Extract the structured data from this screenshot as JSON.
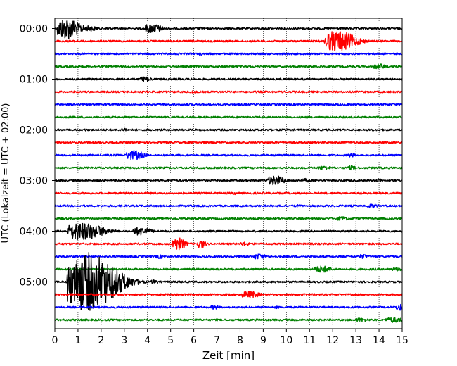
{
  "chart_data": {
    "type": "line",
    "subtype": "helicorder",
    "xlabel": "Zeit  [min]",
    "ylabel": "UTC (Lokalzeit = UTC + 02:00)",
    "xlim": [
      0,
      15
    ],
    "x_ticks": [
      "0",
      "1",
      "2",
      "3",
      "4",
      "5",
      "6",
      "7",
      "8",
      "9",
      "10",
      "11",
      "12",
      "13",
      "14",
      "15"
    ],
    "y_ticks": [
      "00:00",
      "01:00",
      "02:00",
      "03:00",
      "04:00",
      "05:00"
    ],
    "grid": {
      "x": "dotted vertical at each minute",
      "y": "none"
    },
    "legend": "none",
    "line_minutes": 15,
    "trace_colors": [
      "#000000",
      "#ff0000",
      "#0000ff",
      "#008000"
    ],
    "traces": [
      {
        "start": "00:00",
        "color": "#000000",
        "events": [
          {
            "t": 0.5,
            "amp": 16,
            "dur": 1.0
          },
          {
            "t": 1.5,
            "amp": 4,
            "dur": 0.6
          },
          {
            "t": 2.3,
            "amp": 2,
            "dur": 0.4
          },
          {
            "t": 4.2,
            "amp": 7,
            "dur": 0.8
          },
          {
            "t": 6.3,
            "amp": 2,
            "dur": 0.3
          }
        ]
      },
      {
        "start": "00:15",
        "color": "#ff0000",
        "events": [
          {
            "t": 12.2,
            "amp": 15,
            "dur": 1.4
          }
        ]
      },
      {
        "start": "00:30",
        "color": "#0000ff",
        "events": [
          {
            "t": 6.3,
            "amp": 2,
            "dur": 0.3
          },
          {
            "t": 10,
            "amp": 2,
            "dur": 0.3
          }
        ]
      },
      {
        "start": "00:45",
        "color": "#008000",
        "events": [
          {
            "t": 14.0,
            "amp": 4,
            "dur": 0.6
          }
        ]
      },
      {
        "start": "01:00",
        "color": "#000000",
        "events": [
          {
            "t": 3.9,
            "amp": 4,
            "dur": 0.5
          }
        ]
      },
      {
        "start": "01:15",
        "color": "#ff0000",
        "events": [
          {
            "t": 6.0,
            "amp": 2,
            "dur": 0.3
          }
        ]
      },
      {
        "start": "01:30",
        "color": "#0000ff",
        "events": []
      },
      {
        "start": "01:45",
        "color": "#008000",
        "events": []
      },
      {
        "start": "02:00",
        "color": "#000000",
        "events": [
          {
            "t": 1.3,
            "amp": 2,
            "dur": 0.3
          },
          {
            "t": 3.0,
            "amp": 3,
            "dur": 0.3
          }
        ]
      },
      {
        "start": "02:15",
        "color": "#ff0000",
        "events": [
          {
            "t": 4.0,
            "amp": 2,
            "dur": 0.3
          }
        ]
      },
      {
        "start": "02:30",
        "color": "#0000ff",
        "events": [
          {
            "t": 3.4,
            "amp": 7,
            "dur": 0.8
          },
          {
            "t": 12.8,
            "amp": 3,
            "dur": 0.4
          }
        ]
      },
      {
        "start": "02:45",
        "color": "#008000",
        "events": [
          {
            "t": 11.6,
            "amp": 3,
            "dur": 0.6
          },
          {
            "t": 12.8,
            "amp": 3,
            "dur": 0.4
          }
        ]
      },
      {
        "start": "03:00",
        "color": "#000000",
        "events": [
          {
            "t": 9.5,
            "amp": 7,
            "dur": 0.8
          },
          {
            "t": 10.8,
            "amp": 3,
            "dur": 0.4
          },
          {
            "t": 14.0,
            "amp": 3,
            "dur": 0.3
          }
        ]
      },
      {
        "start": "03:15",
        "color": "#ff0000",
        "events": [
          {
            "t": 7.8,
            "amp": 2,
            "dur": 0.4
          }
        ]
      },
      {
        "start": "03:30",
        "color": "#0000ff",
        "events": [
          {
            "t": 10.5,
            "amp": 2,
            "dur": 0.4
          },
          {
            "t": 13.7,
            "amp": 3,
            "dur": 0.6
          }
        ]
      },
      {
        "start": "03:45",
        "color": "#008000",
        "events": [
          {
            "t": 12.4,
            "amp": 3,
            "dur": 0.6
          }
        ]
      },
      {
        "start": "04:00",
        "color": "#000000",
        "events": [
          {
            "t": 1.2,
            "amp": 13,
            "dur": 1.6
          },
          {
            "t": 3.7,
            "amp": 6,
            "dur": 0.8
          }
        ]
      },
      {
        "start": "04:15",
        "color": "#ff0000",
        "events": [
          {
            "t": 5.3,
            "amp": 9,
            "dur": 0.6
          },
          {
            "t": 6.3,
            "amp": 6,
            "dur": 0.4
          },
          {
            "t": 8.2,
            "amp": 3,
            "dur": 0.5
          }
        ]
      },
      {
        "start": "04:30",
        "color": "#0000ff",
        "events": [
          {
            "t": 4.5,
            "amp": 3,
            "dur": 0.4
          },
          {
            "t": 8.8,
            "amp": 4,
            "dur": 0.6
          },
          {
            "t": 13.3,
            "amp": 3,
            "dur": 0.5
          }
        ]
      },
      {
        "start": "04:45",
        "color": "#008000",
        "events": [
          {
            "t": 11.5,
            "amp": 5,
            "dur": 0.8
          },
          {
            "t": 14.8,
            "amp": 3,
            "dur": 0.6
          }
        ]
      },
      {
        "start": "05:00",
        "color": "#000000",
        "events": [
          {
            "t": 1.4,
            "amp": 42,
            "dur": 2.2
          },
          {
            "t": 4.3,
            "amp": 3,
            "dur": 0.4
          }
        ]
      },
      {
        "start": "05:15",
        "color": "#ff0000",
        "events": [
          {
            "t": 8.4,
            "amp": 5,
            "dur": 0.8
          }
        ]
      },
      {
        "start": "05:30",
        "color": "#0000ff",
        "events": [
          {
            "t": 6.9,
            "amp": 3,
            "dur": 0.4
          },
          {
            "t": 9.6,
            "amp": 2,
            "dur": 0.3
          },
          {
            "t": 14.9,
            "amp": 5,
            "dur": 0.4
          }
        ]
      },
      {
        "start": "05:45",
        "color": "#008000",
        "events": [
          {
            "t": 13.2,
            "amp": 3,
            "dur": 0.6
          },
          {
            "t": 14.6,
            "amp": 4,
            "dur": 0.8
          }
        ]
      }
    ]
  }
}
